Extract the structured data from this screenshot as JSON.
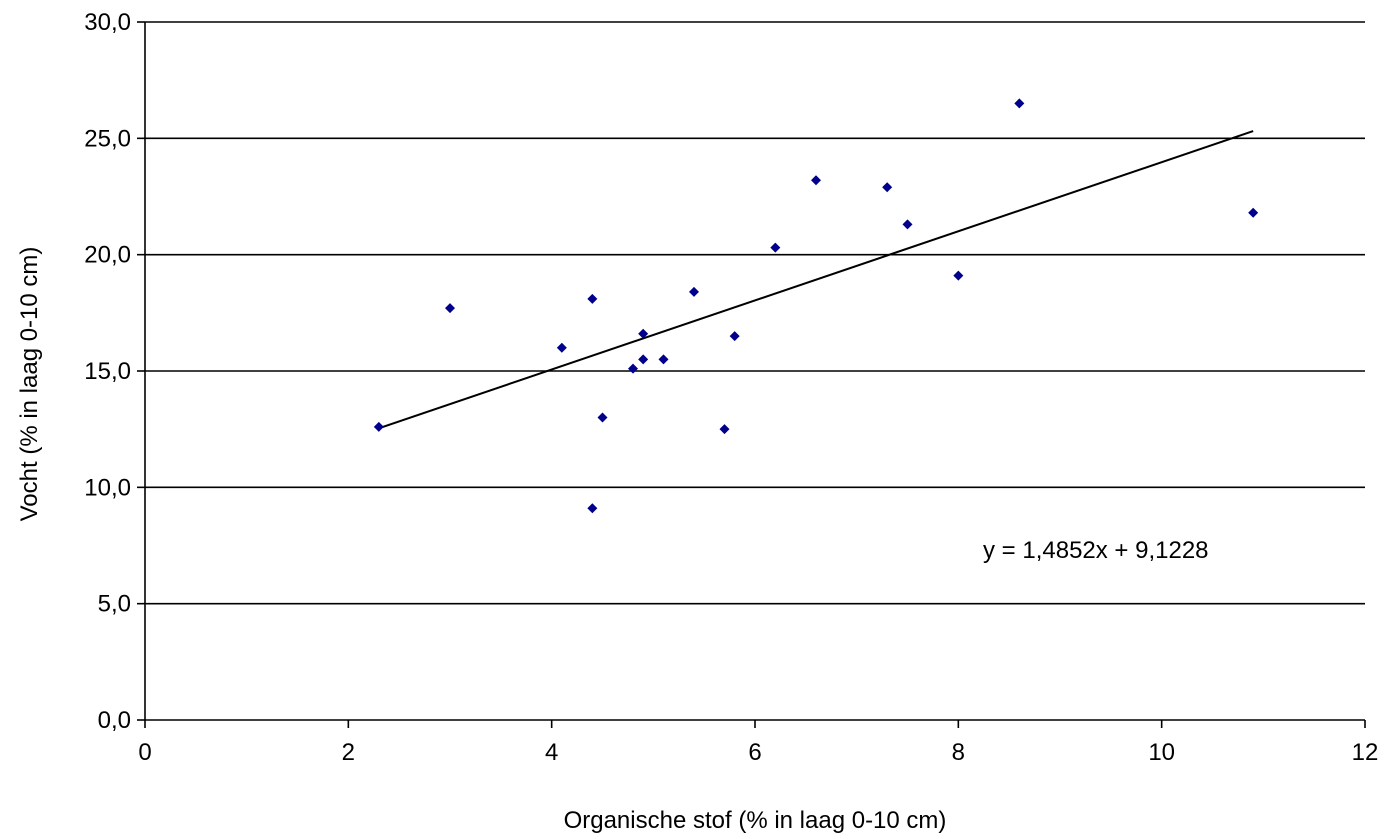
{
  "chart_data": {
    "type": "scatter",
    "title": "",
    "xlabel": "Organische stof (% in laag 0-10 cm)",
    "ylabel": "Vocht (% in laag 0-10 cm)",
    "xlim": [
      0,
      12
    ],
    "ylim": [
      0,
      30
    ],
    "x_ticks": [
      "0",
      "2",
      "4",
      "6",
      "8",
      "10",
      "12"
    ],
    "y_ticks": [
      "0,0",
      "5,0",
      "10,0",
      "15,0",
      "20,0",
      "25,0",
      "30,0"
    ],
    "grid": "horizontal",
    "series": [
      {
        "color": "#00008b",
        "marker": "diamond",
        "x": [
          2.3,
          3.0,
          4.1,
          4.4,
          4.4,
          4.5,
          4.8,
          4.9,
          4.9,
          5.1,
          5.4,
          5.7,
          5.8,
          6.2,
          6.6,
          7.3,
          7.5,
          8.0,
          8.6,
          10.9
        ],
        "y": [
          12.6,
          17.7,
          16.0,
          18.1,
          9.1,
          13.0,
          15.1,
          16.6,
          15.5,
          15.5,
          18.4,
          12.5,
          16.5,
          20.3,
          23.2,
          22.9,
          21.3,
          19.1,
          26.5,
          21.8
        ]
      }
    ],
    "trendline": {
      "slope": 1.4852,
      "intercept": 9.1228,
      "x_range": [
        2.3,
        10.9
      ],
      "color": "#000000",
      "equation": "y = 1,4852x + 9,1228"
    }
  }
}
